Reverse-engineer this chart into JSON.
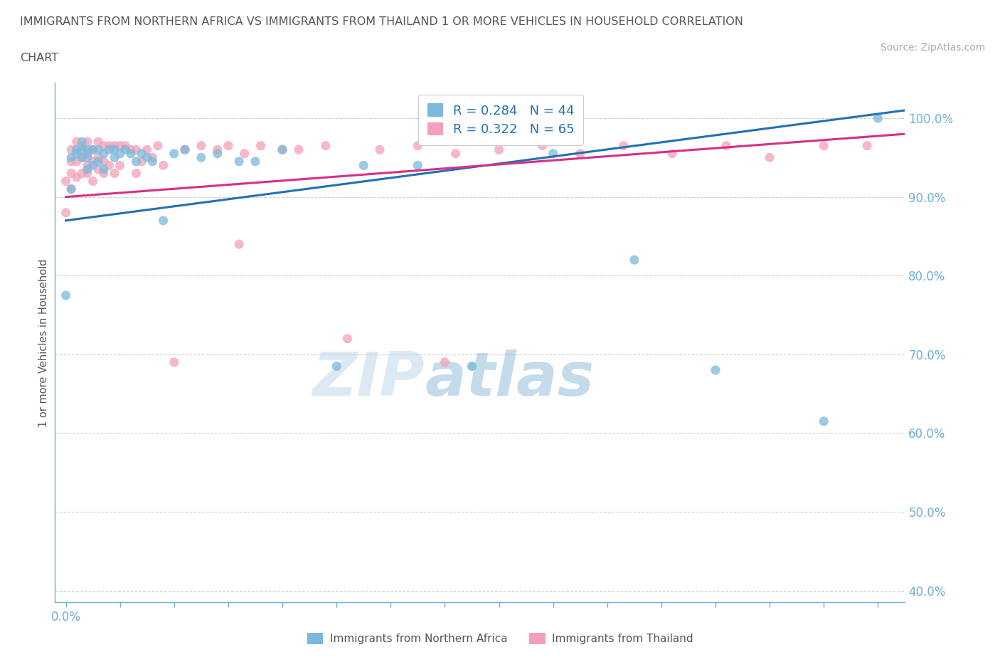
{
  "title_line1": "IMMIGRANTS FROM NORTHERN AFRICA VS IMMIGRANTS FROM THAILAND 1 OR MORE VEHICLES IN HOUSEHOLD CORRELATION",
  "title_line2": "CHART",
  "source_text": "Source: ZipAtlas.com",
  "ylabel": "1 or more Vehicles in Household",
  "watermark_zip": "ZIP",
  "watermark_atlas": "atlas",
  "legend_blue_label": "Immigrants from Northern Africa",
  "legend_pink_label": "Immigrants from Thailand",
  "legend_blue_R": "R = 0.284",
  "legend_blue_N": "N = 44",
  "legend_pink_R": "R = 0.322",
  "legend_pink_N": "N = 65",
  "xmin": -0.002,
  "xmax": 0.155,
  "ymin": 0.385,
  "ymax": 1.045,
  "yticks": [
    0.4,
    0.5,
    0.6,
    0.7,
    0.8,
    0.9,
    1.0
  ],
  "ytick_labels": [
    "40.0%",
    "50.0%",
    "60.0%",
    "70.0%",
    "80.0%",
    "90.0%",
    "100.0%"
  ],
  "blue_color": "#7bb8db",
  "pink_color": "#f4a0b8",
  "blue_line_color": "#2171b5",
  "pink_line_color": "#d63088",
  "grid_color": "#d0d0d0",
  "axis_color": "#6baed6",
  "title_color": "#555555",
  "blue_scatter_x": [
    0.0,
    0.001,
    0.001,
    0.002,
    0.002,
    0.003,
    0.003,
    0.003,
    0.004,
    0.004,
    0.004,
    0.005,
    0.005,
    0.006,
    0.006,
    0.007,
    0.007,
    0.008,
    0.009,
    0.009,
    0.01,
    0.011,
    0.012,
    0.013,
    0.014,
    0.015,
    0.016,
    0.018,
    0.02,
    0.022,
    0.025,
    0.028,
    0.032,
    0.035,
    0.04,
    0.05,
    0.055,
    0.065,
    0.075,
    0.09,
    0.105,
    0.12,
    0.14,
    0.15
  ],
  "blue_scatter_y": [
    0.775,
    0.91,
    0.95,
    0.955,
    0.96,
    0.95,
    0.96,
    0.97,
    0.935,
    0.95,
    0.96,
    0.94,
    0.96,
    0.945,
    0.96,
    0.935,
    0.955,
    0.96,
    0.95,
    0.96,
    0.955,
    0.96,
    0.955,
    0.945,
    0.955,
    0.95,
    0.945,
    0.87,
    0.955,
    0.96,
    0.95,
    0.955,
    0.945,
    0.945,
    0.96,
    0.685,
    0.94,
    0.94,
    0.685,
    0.955,
    0.82,
    0.68,
    0.615,
    1.0
  ],
  "pink_scatter_x": [
    0.0,
    0.0,
    0.001,
    0.001,
    0.001,
    0.001,
    0.002,
    0.002,
    0.002,
    0.003,
    0.003,
    0.003,
    0.004,
    0.004,
    0.004,
    0.004,
    0.005,
    0.005,
    0.005,
    0.006,
    0.006,
    0.006,
    0.007,
    0.007,
    0.007,
    0.008,
    0.008,
    0.009,
    0.009,
    0.01,
    0.01,
    0.011,
    0.012,
    0.013,
    0.013,
    0.014,
    0.015,
    0.016,
    0.017,
    0.018,
    0.02,
    0.022,
    0.025,
    0.028,
    0.03,
    0.033,
    0.036,
    0.04,
    0.043,
    0.048,
    0.052,
    0.058,
    0.065,
    0.072,
    0.08,
    0.088,
    0.095,
    0.103,
    0.112,
    0.122,
    0.13,
    0.14,
    0.148,
    0.032,
    0.07
  ],
  "pink_scatter_y": [
    0.88,
    0.92,
    0.91,
    0.93,
    0.945,
    0.96,
    0.925,
    0.945,
    0.97,
    0.93,
    0.95,
    0.965,
    0.93,
    0.94,
    0.955,
    0.97,
    0.92,
    0.945,
    0.96,
    0.935,
    0.95,
    0.97,
    0.93,
    0.945,
    0.965,
    0.94,
    0.965,
    0.93,
    0.965,
    0.94,
    0.965,
    0.965,
    0.96,
    0.93,
    0.96,
    0.945,
    0.96,
    0.95,
    0.965,
    0.94,
    0.69,
    0.96,
    0.965,
    0.96,
    0.965,
    0.955,
    0.965,
    0.96,
    0.96,
    0.965,
    0.72,
    0.96,
    0.965,
    0.955,
    0.96,
    0.965,
    0.955,
    0.965,
    0.955,
    0.965,
    0.95,
    0.965,
    0.965,
    0.84,
    0.69
  ],
  "blue_trend_x0": 0.0,
  "blue_trend_x1": 0.155,
  "blue_trend_y0": 0.87,
  "blue_trend_y1": 1.01,
  "pink_trend_x0": 0.0,
  "pink_trend_x1": 0.155,
  "pink_trend_y0": 0.9,
  "pink_trend_y1": 0.98
}
